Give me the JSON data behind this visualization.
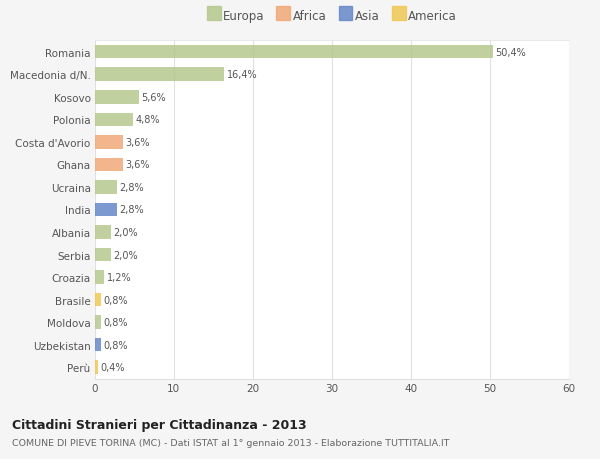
{
  "countries": [
    "Romania",
    "Macedonia d/N.",
    "Kosovo",
    "Polonia",
    "Costa d'Avorio",
    "Ghana",
    "Ucraina",
    "India",
    "Albania",
    "Serbia",
    "Croazia",
    "Brasile",
    "Moldova",
    "Uzbekistan",
    "Perù"
  ],
  "values": [
    50.4,
    16.4,
    5.6,
    4.8,
    3.6,
    3.6,
    2.8,
    2.8,
    2.0,
    2.0,
    1.2,
    0.8,
    0.8,
    0.8,
    0.4
  ],
  "labels": [
    "50,4%",
    "16,4%",
    "5,6%",
    "4,8%",
    "3,6%",
    "3,6%",
    "2,8%",
    "2,8%",
    "2,0%",
    "2,0%",
    "1,2%",
    "0,8%",
    "0,8%",
    "0,8%",
    "0,4%"
  ],
  "continents": [
    "Europa",
    "Europa",
    "Europa",
    "Europa",
    "Africa",
    "Africa",
    "Europa",
    "Asia",
    "Europa",
    "Europa",
    "Europa",
    "America",
    "Europa",
    "Asia",
    "America"
  ],
  "continent_colors": {
    "Europa": "#b5c98e",
    "Africa": "#f0a878",
    "Asia": "#6688c8",
    "America": "#f0c855"
  },
  "legend_order": [
    "Europa",
    "Africa",
    "Asia",
    "America"
  ],
  "legend_colors": [
    "#b5c98e",
    "#f0a878",
    "#6688c8",
    "#f0c855"
  ],
  "title": "Cittadini Stranieri per Cittadinanza - 2013",
  "subtitle": "COMUNE DI PIEVE TORINA (MC) - Dati ISTAT al 1° gennaio 2013 - Elaborazione TUTTITALIA.IT",
  "xlim": [
    0,
    60
  ],
  "xticks": [
    0,
    10,
    20,
    30,
    40,
    50,
    60
  ],
  "background_color": "#f5f5f5",
  "plot_bg_color": "#ffffff",
  "grid_color": "#e0e0e0",
  "text_color": "#555555",
  "title_color": "#222222",
  "subtitle_color": "#666666",
  "bar_alpha": 0.85
}
